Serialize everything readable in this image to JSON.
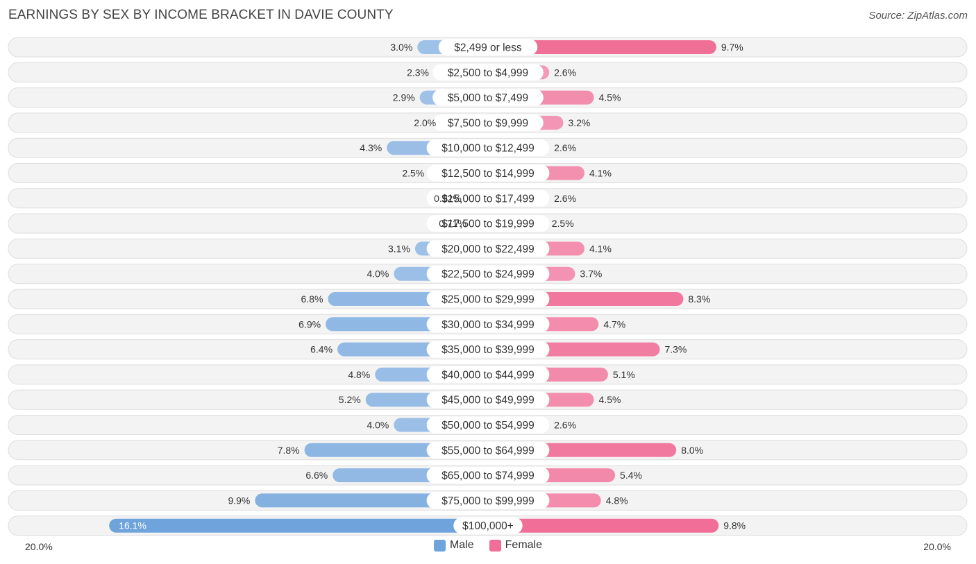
{
  "header": {
    "title": "EARNINGS BY SEX BY INCOME BRACKET IN DAVIE COUNTY",
    "source": "Source: ZipAtlas.com"
  },
  "colors": {
    "male_light": "#a9c8ea",
    "male_dark": "#6fa3dc",
    "female_light": "#f5a8c2",
    "female_dark": "#f06e97",
    "row_bg": "#f3f3f3",
    "row_border": "#dddddd"
  },
  "legend": {
    "male_label": "Male",
    "female_label": "Female"
  },
  "axis": {
    "left_label": "20.0%",
    "right_label": "20.0%"
  },
  "chart_data": {
    "type": "bar",
    "orientation": "horizontal-diverging",
    "title": "EARNINGS BY SEX BY INCOME BRACKET IN DAVIE COUNTY",
    "xlim": [
      -20,
      20
    ],
    "categories": [
      "$2,499 or less",
      "$2,500 to $4,999",
      "$5,000 to $7,499",
      "$7,500 to $9,999",
      "$10,000 to $12,499",
      "$12,500 to $14,999",
      "$15,000 to $17,499",
      "$17,500 to $19,999",
      "$20,000 to $22,499",
      "$22,500 to $24,999",
      "$25,000 to $29,999",
      "$30,000 to $34,999",
      "$35,000 to $39,999",
      "$40,000 to $44,999",
      "$45,000 to $49,999",
      "$50,000 to $54,999",
      "$55,000 to $64,999",
      "$65,000 to $74,999",
      "$75,000 to $99,999",
      "$100,000+"
    ],
    "series": [
      {
        "name": "Male",
        "values": [
          3.0,
          2.3,
          2.9,
          2.0,
          4.3,
          2.5,
          0.92,
          0.71,
          3.1,
          4.0,
          6.8,
          6.9,
          6.4,
          4.8,
          5.2,
          4.0,
          7.8,
          6.6,
          9.9,
          16.1
        ],
        "labels": [
          "3.0%",
          "2.3%",
          "2.9%",
          "2.0%",
          "4.3%",
          "2.5%",
          "0.92%",
          "0.71%",
          "3.1%",
          "4.0%",
          "6.8%",
          "6.9%",
          "6.4%",
          "4.8%",
          "5.2%",
          "4.0%",
          "7.8%",
          "6.6%",
          "9.9%",
          "16.1%"
        ]
      },
      {
        "name": "Female",
        "values": [
          9.7,
          2.6,
          4.5,
          3.2,
          2.6,
          4.1,
          2.6,
          2.5,
          4.1,
          3.7,
          8.3,
          4.7,
          7.3,
          5.1,
          4.5,
          2.6,
          8.0,
          5.4,
          4.8,
          9.8
        ],
        "labels": [
          "9.7%",
          "2.6%",
          "4.5%",
          "3.2%",
          "2.6%",
          "4.1%",
          "2.6%",
          "2.5%",
          "4.1%",
          "3.7%",
          "8.3%",
          "4.7%",
          "7.3%",
          "5.1%",
          "4.5%",
          "2.6%",
          "8.0%",
          "5.4%",
          "4.8%",
          "9.8%"
        ]
      }
    ]
  }
}
